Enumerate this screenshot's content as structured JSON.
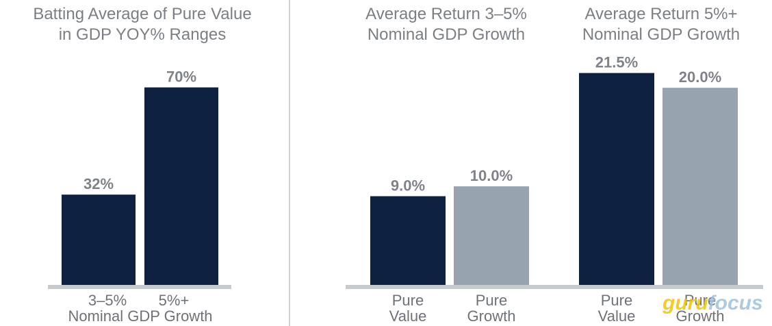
{
  "chart_data": [
    {
      "type": "bar",
      "title_lines": [
        "Batting Average of Pure Value",
        "in GDP YOY% Ranges"
      ],
      "categories": [
        "3–5%",
        "5%+"
      ],
      "xlabel": "Nominal GDP Growth",
      "values": [
        32,
        70
      ],
      "value_labels": [
        "32%",
        "70%"
      ],
      "colors": [
        "#0e2140",
        "#0e2140"
      ],
      "ylim": [
        0,
        100
      ]
    },
    {
      "type": "bar",
      "title_lines": [
        "Average Return 3–5%",
        "Nominal GDP Growth"
      ],
      "categories": [
        [
          "Pure",
          "Value"
        ],
        [
          "Pure",
          "Growth"
        ]
      ],
      "values": [
        9.0,
        10.0
      ],
      "value_labels": [
        "9.0%",
        "10.0%"
      ],
      "colors": [
        "#0e2140",
        "#97a3ae"
      ],
      "ylim": [
        0,
        23.5
      ]
    },
    {
      "type": "bar",
      "title_lines": [
        "Average Return 5%+",
        "Nominal GDP Growth"
      ],
      "categories": [
        [
          "Pure",
          "Value"
        ],
        [
          "Pure",
          "Growth"
        ]
      ],
      "values": [
        21.5,
        20.0
      ],
      "value_labels": [
        "21.5%",
        "20.0%"
      ],
      "colors": [
        "#0e2140",
        "#97a3ae"
      ],
      "ylim": [
        0,
        23.5
      ]
    }
  ],
  "watermark": {
    "part1": "guru",
    "part2": "focus",
    "color1": "#f2c500",
    "color2": "#9ec1e0"
  }
}
